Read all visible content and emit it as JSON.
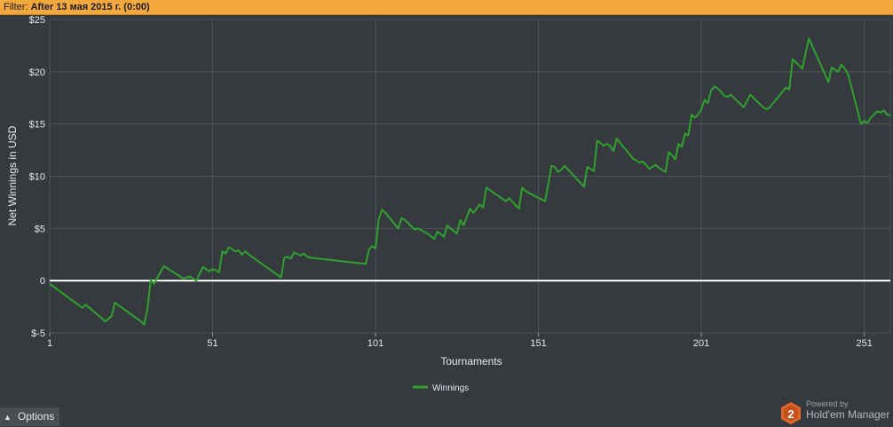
{
  "filter": {
    "label": "Filter:",
    "value": "After 13 мая 2015 г. (0:00)"
  },
  "options": {
    "label": "Options"
  },
  "branding": {
    "powered_by": "Powered by",
    "product": "Hold'em Manager",
    "logo_text": "2",
    "icon": "hem-hexagon-logo-icon"
  },
  "colors": {
    "background": "#363a3f",
    "grid": "#4f5459",
    "series": "#2ea12e",
    "zero_line": "#ffffff",
    "filter_bar": "#f4a93e"
  },
  "chart_data": {
    "type": "line",
    "xlabel": "Tournaments",
    "ylabel": "Net Winnings in USD",
    "x_ticks": [
      1,
      51,
      101,
      151,
      201,
      251
    ],
    "y_ticks": [
      25,
      20,
      15,
      10,
      5,
      0,
      -5
    ],
    "y_tick_labels": [
      "$25",
      "$20",
      "$15",
      "$10",
      "$5",
      "0",
      "$-5"
    ],
    "xlim": [
      1,
      259
    ],
    "ylim": [
      -5,
      25
    ],
    "grid": true,
    "legend_position": "bottom-center",
    "series": [
      {
        "name": "Winnings",
        "x": [
          1,
          11,
          12,
          17,
          18,
          20,
          21,
          29,
          30,
          31,
          32,
          33,
          36,
          40,
          42,
          44,
          45,
          46,
          48,
          50,
          51,
          52,
          53,
          54,
          55,
          56,
          58,
          59,
          60,
          61,
          63,
          72,
          73,
          74,
          75,
          76,
          78,
          79,
          80,
          81,
          98,
          99,
          100,
          101,
          102,
          103,
          104,
          108,
          109,
          110,
          113,
          114,
          117,
          119,
          120,
          122,
          123,
          124,
          126,
          127,
          128,
          130,
          131,
          133,
          134,
          135,
          141,
          142,
          144,
          145,
          146,
          147,
          148,
          153,
          154,
          155,
          156,
          157,
          158,
          159,
          165,
          166,
          167,
          168,
          169,
          170,
          171,
          172,
          173,
          174,
          175,
          180,
          181,
          182,
          183,
          184,
          185,
          187,
          188,
          189,
          190,
          191,
          192,
          193,
          194,
          195,
          196,
          197,
          198,
          199,
          200,
          201,
          202,
          203,
          204,
          205,
          206,
          207,
          208,
          209,
          210,
          212,
          214,
          216,
          217,
          219,
          220,
          221,
          222,
          227,
          228,
          229,
          230,
          231,
          232,
          233,
          234,
          240,
          241,
          242,
          243,
          244,
          245,
          246,
          250,
          251,
          252,
          253,
          254,
          255,
          256,
          257,
          258,
          259
        ],
        "y": [
          -0.3,
          -2.6,
          -2.3,
          -3.6,
          -3.9,
          -3.4,
          -2.1,
          -3.9,
          -4.2,
          -2.7,
          0.1,
          -0.3,
          1.4,
          0.6,
          0.2,
          0.4,
          0.2,
          0.0,
          1.3,
          0.9,
          1.1,
          1.0,
          0.8,
          2.8,
          2.6,
          3.2,
          2.8,
          2.9,
          2.5,
          2.8,
          2.3,
          0.3,
          2.2,
          2.3,
          2.1,
          2.7,
          2.4,
          2.6,
          2.3,
          2.2,
          1.6,
          3.0,
          3.3,
          3.1,
          5.9,
          6.8,
          6.5,
          5.0,
          6.0,
          5.8,
          4.9,
          5.0,
          4.5,
          4.0,
          4.7,
          4.2,
          5.3,
          5.0,
          4.5,
          5.8,
          5.3,
          6.9,
          6.5,
          7.3,
          7.0,
          8.9,
          7.6,
          7.9,
          7.2,
          6.9,
          8.9,
          8.6,
          8.4,
          7.6,
          9.2,
          11.0,
          10.9,
          10.4,
          10.6,
          11.0,
          9.0,
          10.9,
          10.7,
          10.5,
          13.4,
          13.2,
          12.9,
          13.1,
          12.9,
          12.4,
          13.6,
          11.7,
          11.5,
          11.3,
          11.4,
          11.1,
          10.7,
          11.1,
          10.8,
          10.6,
          10.4,
          12.3,
          12.0,
          11.6,
          13.1,
          12.8,
          14.1,
          13.9,
          15.9,
          15.6,
          15.9,
          16.4,
          17.3,
          17.0,
          18.2,
          18.6,
          18.4,
          18.1,
          17.7,
          17.6,
          17.8,
          17.2,
          16.6,
          17.8,
          17.5,
          16.9,
          16.6,
          16.4,
          16.6,
          18.5,
          18.3,
          21.2,
          20.9,
          20.6,
          20.3,
          21.8,
          23.2,
          19.0,
          20.4,
          20.2,
          20.0,
          20.7,
          20.3,
          19.8,
          15.0,
          15.3,
          15.1,
          15.6,
          15.9,
          16.2,
          16.1,
          16.3,
          15.9,
          15.8
        ]
      }
    ]
  }
}
